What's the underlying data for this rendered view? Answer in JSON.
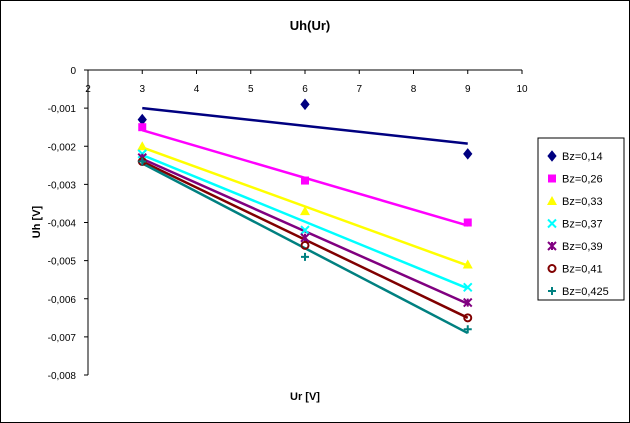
{
  "chart_data": {
    "type": "scatter",
    "title": "Uh(Ur)",
    "xlabel": "Ur [V]",
    "ylabel": "Uh [V]",
    "xlim": [
      2,
      10
    ],
    "ylim": [
      -0.008,
      0
    ],
    "x_ticks": [
      "2",
      "3",
      "4",
      "5",
      "6",
      "7",
      "8",
      "9",
      "10"
    ],
    "y_ticks": [
      "0",
      "-0,001",
      "-0,002",
      "-0,003",
      "-0,004",
      "-0,005",
      "-0,006",
      "-0,007",
      "-0,008"
    ],
    "grid": false,
    "legend_position": "right",
    "trendlines": true,
    "series": [
      {
        "name": "Bz=0,14",
        "color": "#000080",
        "marker": "diamond",
        "x": [
          3,
          6,
          9
        ],
        "y": [
          -0.0013,
          -0.0009,
          -0.0022
        ],
        "trend": [
          -0.001,
          -0.00193
        ]
      },
      {
        "name": "Bz=0,26",
        "color": "#ff00ff",
        "marker": "square",
        "x": [
          3,
          6,
          9
        ],
        "y": [
          -0.0015,
          -0.0029,
          -0.004
        ],
        "trend": [
          -0.00158,
          -0.00408
        ]
      },
      {
        "name": "Bz=0,33",
        "color": "#ffff00",
        "marker": "triangle",
        "x": [
          3,
          6,
          9
        ],
        "y": [
          -0.002,
          -0.0037,
          -0.0051
        ],
        "trend": [
          -0.00203,
          -0.00513
        ]
      },
      {
        "name": "Bz=0,37",
        "color": "#00ffff",
        "marker": "x",
        "x": [
          3,
          6,
          9
        ],
        "y": [
          -0.0022,
          -0.0042,
          -0.0057
        ],
        "trend": [
          -0.00223,
          -0.00573
        ]
      },
      {
        "name": "Bz=0,39",
        "color": "#800080",
        "marker": "star",
        "x": [
          3,
          6,
          9
        ],
        "y": [
          -0.0023,
          -0.0044,
          -0.0061
        ],
        "trend": [
          -0.00233,
          -0.00613
        ]
      },
      {
        "name": "Bz=0,41",
        "color": "#800000",
        "marker": "circle",
        "x": [
          3,
          6,
          9
        ],
        "y": [
          -0.0024,
          -0.0046,
          -0.0065
        ],
        "trend": [
          -0.0024,
          -0.0065
        ]
      },
      {
        "name": "Bz=0,425",
        "color": "#008080",
        "marker": "plus",
        "x": [
          3,
          6,
          9
        ],
        "y": [
          -0.0024,
          -0.0049,
          -0.0068
        ],
        "trend": [
          -0.00245,
          -0.0069
        ]
      }
    ]
  }
}
